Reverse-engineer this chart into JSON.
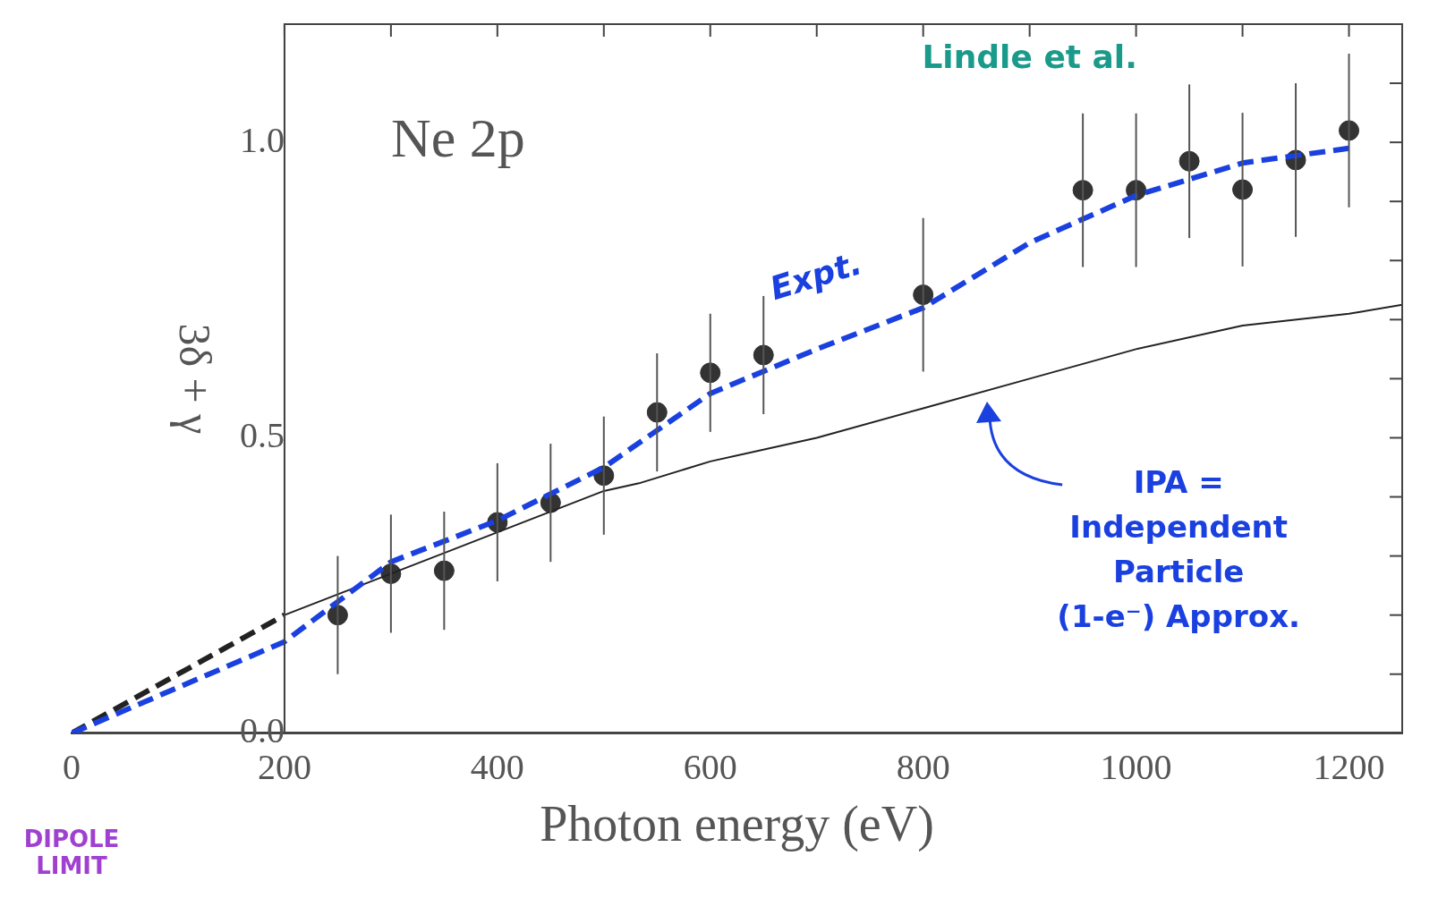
{
  "chart_data": {
    "type": "scatter",
    "xlabel": "Photon energy (eV)",
    "ylabel": "3δ + γ",
    "xlim": [
      0,
      1250
    ],
    "ylim": [
      0,
      1.2
    ],
    "xticks": [
      {
        "value": 0,
        "label": "0"
      },
      200,
      {
        "value": 300,
        "label": null
      },
      400,
      {
        "value": 500,
        "label": null
      },
      600,
      {
        "value": 700,
        "label": null
      },
      800,
      {
        "value": 900,
        "label": null
      },
      1000,
      {
        "value": 1100,
        "label": null
      },
      1200
    ],
    "yticks": [
      {
        "value": 0,
        "label": "0.0"
      },
      {
        "value": 0.1,
        "label": null
      },
      {
        "value": 0.2,
        "label": null
      },
      {
        "value": 0.3,
        "label": null
      },
      {
        "value": 0.4,
        "label": null
      },
      {
        "value": 0.5,
        "label": "0.5"
      },
      {
        "value": 0.6,
        "label": null
      },
      {
        "value": 0.7,
        "label": null
      },
      {
        "value": 0.8,
        "label": null
      },
      {
        "value": 0.9,
        "label": null
      },
      {
        "value": 1.0,
        "label": "1.0"
      },
      {
        "value": 1.1,
        "label": null
      }
    ],
    "grid": false,
    "legend": false,
    "series": [
      {
        "type": "line",
        "line_style": "dashed",
        "marker": "none",
        "color": "#1a40e0",
        "x": [
          0,
          200,
          300,
          400,
          500,
          600,
          700,
          800,
          900,
          1000,
          1100,
          1200
        ],
        "values": [
          0,
          0.155,
          0.29,
          0.36,
          0.45,
          0.575,
          0.65,
          0.72,
          0.83,
          0.91,
          0.965,
          0.99
        ]
      },
      {
        "type": "line",
        "line_style": "dashed",
        "marker": "none",
        "color": "#222222",
        "x": [
          0,
          100,
          200
        ],
        "values": [
          0,
          0.1,
          0.2
        ]
      },
      {
        "type": "line",
        "line_style": "solid",
        "marker": "none",
        "color": "#222222",
        "x": [
          200,
          300,
          400,
          500,
          533,
          600,
          700,
          800,
          900,
          1000,
          1100,
          1200,
          1250
        ],
        "values": [
          0.2,
          0.27,
          0.34,
          0.41,
          0.423,
          0.46,
          0.5,
          0.55,
          0.6,
          0.65,
          0.69,
          0.71,
          0.725
        ]
      },
      {
        "type": "scatter",
        "marker": "circle",
        "color": "#333333",
        "x": [
          250,
          300,
          350,
          400,
          450,
          500,
          550,
          600,
          650,
          800,
          950,
          1000,
          1050,
          1100,
          1150,
          1200
        ],
        "values": [
          0.2,
          0.27,
          0.275,
          0.357,
          0.39,
          0.436,
          0.543,
          0.61,
          0.64,
          0.742,
          0.919,
          0.919,
          0.968,
          0.92,
          0.97,
          1.02
        ],
        "errors": [
          0.1,
          0.1,
          0.1,
          0.1,
          0.1,
          0.1,
          0.1,
          0.1,
          0.1,
          0.13,
          0.13,
          0.13,
          0.13,
          0.13,
          0.13,
          0.13
        ]
      }
    ],
    "annotations": [
      "Ne 2p",
      "Lindle et al.",
      "Expt.",
      "IPA = Independent Particle (1-e⁻) Approx.",
      "DIPOLE LIMIT"
    ]
  }
}
